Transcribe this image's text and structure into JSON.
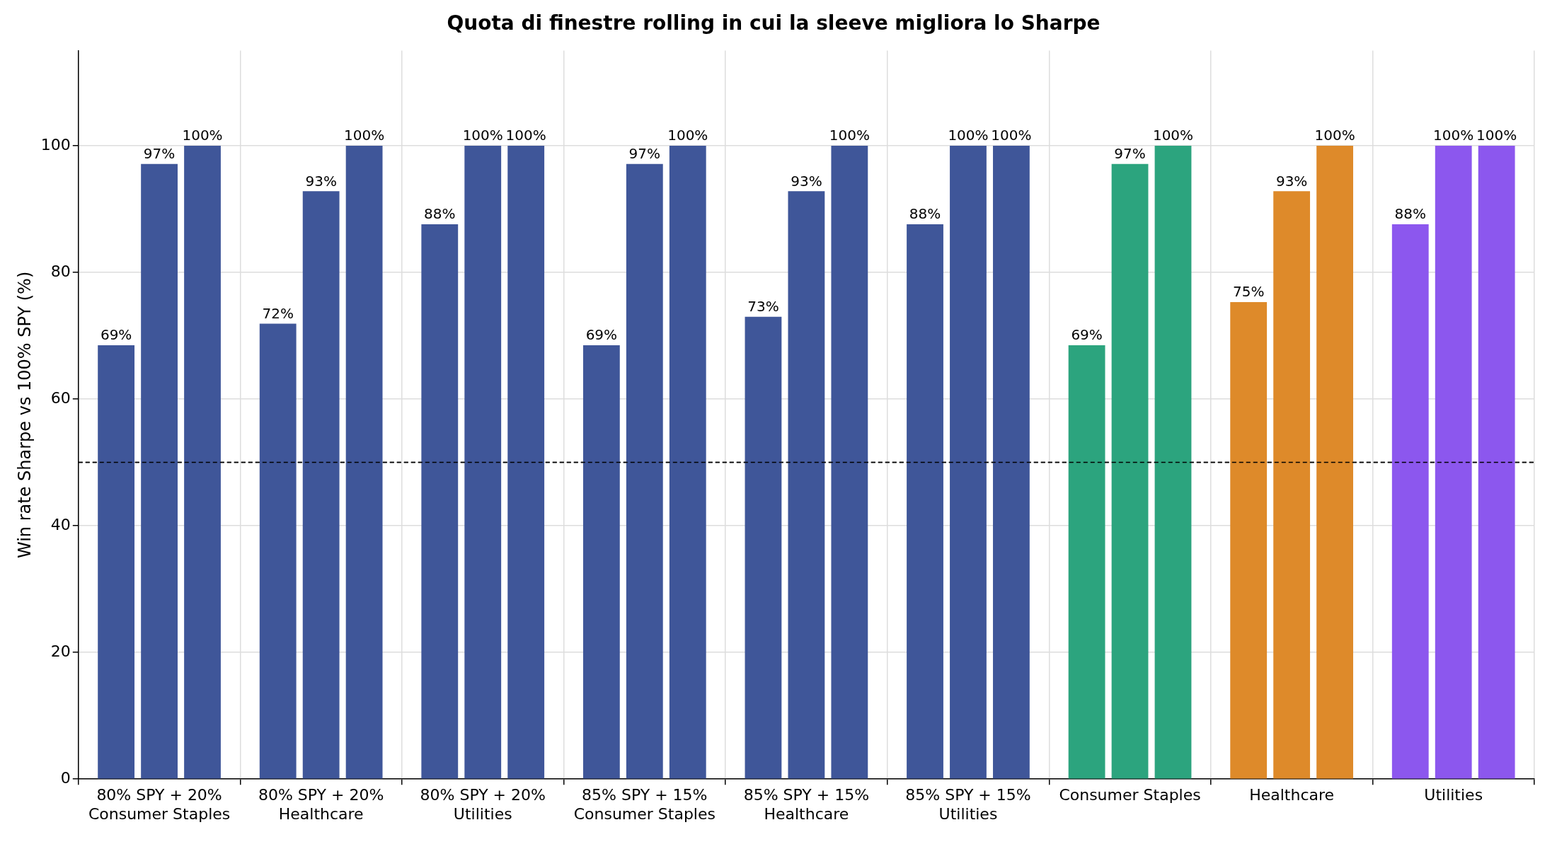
{
  "chart_data": {
    "type": "bar",
    "title": "Quota di finestre rolling in cui la sleeve migliora lo Sharpe",
    "ylabel": "Win rate Sharpe vs 100% SPY (%)",
    "categories": [
      "80% SPY + 20% Consumer Staples",
      "80% SPY + 20% Healthcare",
      "80% SPY + 20% Utilities",
      "85% SPY + 15% Consumer Staples",
      "85% SPY + 15% Healthcare",
      "85% SPY + 15% Utilities",
      "Consumer Staples",
      "Healthcare",
      "Utilities"
    ],
    "series": [
      {
        "colors": [
          "#3f5699",
          "#3f5699",
          "#3f5699",
          "#3f5699",
          "#3f5699",
          "#3f5699",
          "#2ca47e",
          "#de8a2a",
          "#8c57ee"
        ],
        "values": [
          68.5,
          71.9,
          87.6,
          68.5,
          73.0,
          87.6,
          68.5,
          75.3,
          87.6
        ],
        "value_labels": [
          "69%",
          "72%",
          "88%",
          "69%",
          "73%",
          "88%",
          "69%",
          "75%",
          "88%"
        ]
      },
      {
        "colors": [
          "#3f5699",
          "#3f5699",
          "#3f5699",
          "#3f5699",
          "#3f5699",
          "#3f5699",
          "#2ca47e",
          "#de8a2a",
          "#8c57ee"
        ],
        "values": [
          97.1,
          92.8,
          100,
          97.1,
          92.8,
          100,
          97.1,
          92.8,
          100
        ],
        "value_labels": [
          "97%",
          "93%",
          "100%",
          "97%",
          "93%",
          "100%",
          "97%",
          "93%",
          "100%"
        ]
      },
      {
        "colors": [
          "#3f5699",
          "#3f5699",
          "#3f5699",
          "#3f5699",
          "#3f5699",
          "#3f5699",
          "#2ca47e",
          "#de8a2a",
          "#8c57ee"
        ],
        "values": [
          100,
          100,
          100,
          100,
          100,
          100,
          100,
          100,
          100
        ],
        "value_labels": [
          "100%",
          "100%",
          "100%",
          "100%",
          "100%",
          "100%",
          "100%",
          "100%",
          "100%"
        ]
      }
    ],
    "ylim": [
      0,
      115
    ],
    "yticks": [
      0,
      20,
      40,
      60,
      80,
      100
    ],
    "grid": true,
    "legend": false,
    "ref_lines": [
      {
        "axis": "y",
        "value": 50,
        "color": "#000000",
        "line_style": "dashed"
      }
    ]
  }
}
